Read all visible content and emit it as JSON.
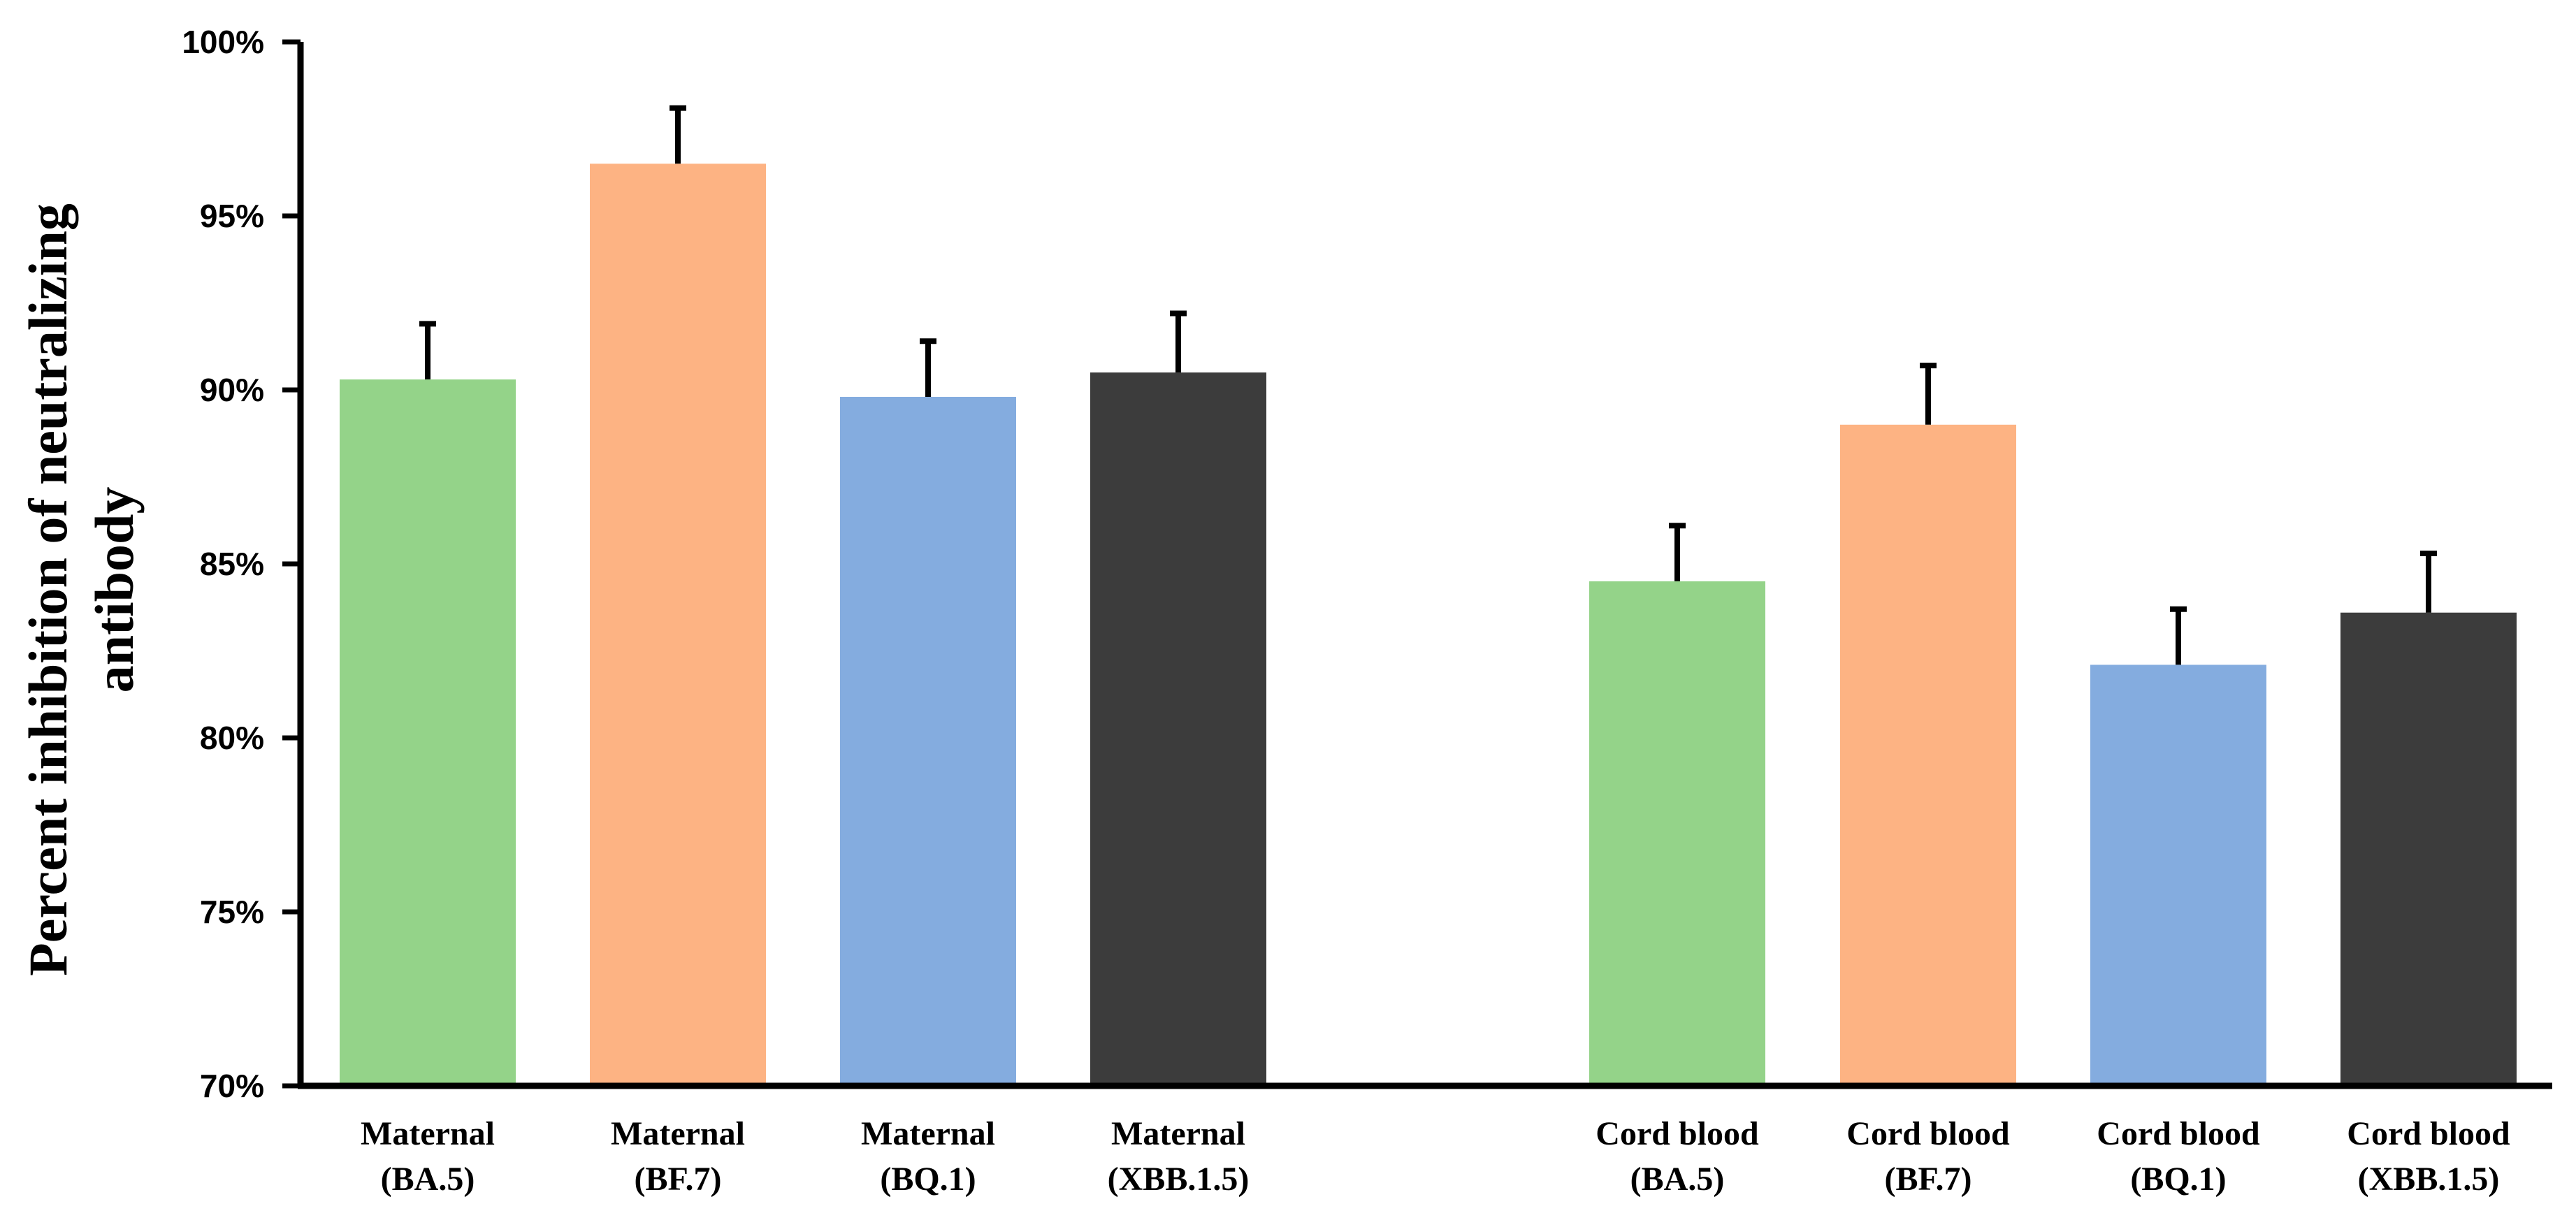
{
  "chart_data": {
    "type": "bar",
    "title": "",
    "xlabel": "",
    "ylabel": "Percent inhibition of neutralizing antibody",
    "ylabel_lines": [
      "Percent inhibition of neutralizing",
      "antibody"
    ],
    "ylim": [
      70,
      100
    ],
    "yticks": [
      70,
      75,
      80,
      85,
      90,
      95,
      100
    ],
    "ytick_labels": [
      "70%",
      "75%",
      "80%",
      "85%",
      "90%",
      "95%",
      "100%"
    ],
    "grid": false,
    "groups": [
      {
        "name": "Maternal",
        "bars": [
          {
            "label_line1": "Maternal",
            "label_line2": "(BA.5)",
            "value": 90.3,
            "error": 1.6,
            "color": "#94D389"
          },
          {
            "label_line1": "Maternal",
            "label_line2": "(BF.7)",
            "value": 96.5,
            "error": 1.6,
            "color": "#FDB383"
          },
          {
            "label_line1": "Maternal",
            "label_line2": "(BQ.1)",
            "value": 89.8,
            "error": 1.6,
            "color": "#84ACDF"
          },
          {
            "label_line1": "Maternal",
            "label_line2": "(XBB.1.5)",
            "value": 90.5,
            "error": 1.7,
            "color": "#3C3C3C"
          }
        ]
      },
      {
        "name": "Cord blood",
        "bars": [
          {
            "label_line1": "Cord blood",
            "label_line2": "(BA.5)",
            "value": 84.5,
            "error": 1.6,
            "color": "#94D389"
          },
          {
            "label_line1": "Cord blood",
            "label_line2": "(BF.7)",
            "value": 89.0,
            "error": 1.7,
            "color": "#FDB383"
          },
          {
            "label_line1": "Cord blood",
            "label_line2": "(BQ.1)",
            "value": 82.1,
            "error": 1.6,
            "color": "#84ACDF"
          },
          {
            "label_line1": "Cord blood",
            "label_line2": "(XBB.1.5)",
            "value": 83.6,
            "error": 1.7,
            "color": "#3C3C3C"
          }
        ]
      }
    ]
  }
}
